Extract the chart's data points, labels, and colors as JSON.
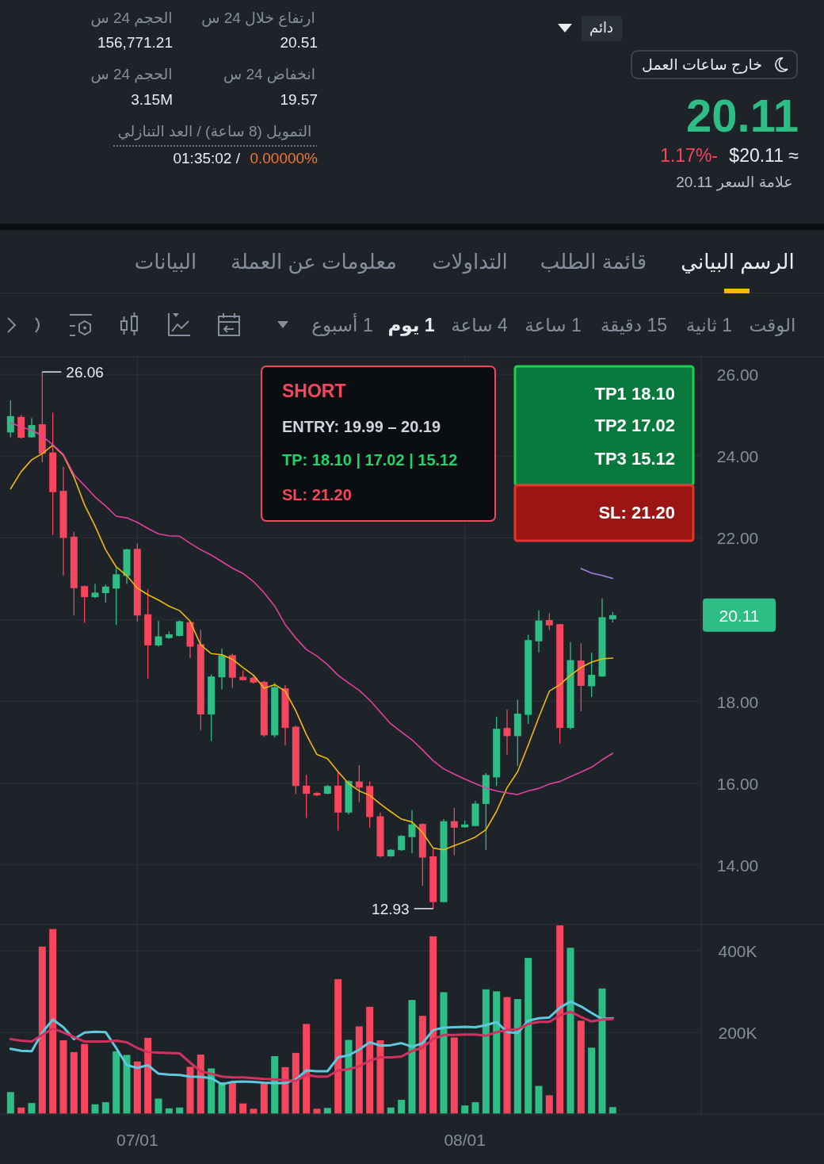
{
  "chart_data": [
    {
      "type": "other",
      "annotations": [
        "دائم",
        "خارج ساعات العمل",
        "20.11",
        "$20.11 ≈",
        "1.17%-",
        "علامة السعر 20.11",
        "ارتفاع خلال 24 س",
        "20.51",
        "انخفاض 24 س",
        "19.57",
        "الحجم 24 س",
        "156,771.21",
        "الحجم 24 س",
        "3.15M",
        "التمويل (8 ساعة) / العد التنازلي",
        "01:35:02 /",
        "0.00000%",
        "الرسم البياني",
        "قائمة الطلب",
        "التداولات",
        "معلومات عن العملة",
        "البيانات",
        "الوقت",
        "1 ثانية",
        "15 دقيقة",
        "1 ساعة",
        "4 ساعة",
        "1 يوم",
        "1 أسبوع"
      ]
    },
    {
      "type": "candlestick",
      "x": [
        "--06-19",
        "--06-20",
        "--06-21",
        "--06-22",
        "--06-23",
        "--06-24",
        "--06-25",
        "--06-26",
        "--06-27",
        "--06-28",
        "--06-29",
        "--06-30",
        "--07-01",
        "--07-02",
        "--07-03",
        "--07-04",
        "--07-05",
        "--07-06",
        "--07-07",
        "--07-08",
        "--07-09",
        "--07-10",
        "--07-11",
        "--07-12",
        "--07-13",
        "--07-14",
        "--07-15",
        "--07-16",
        "--07-17",
        "--07-18",
        "--07-19",
        "--07-20",
        "--07-21",
        "--07-22",
        "--07-23",
        "--07-24",
        "--07-25",
        "--07-26",
        "--07-27",
        "--07-28",
        "--07-29",
        "--07-30",
        "--07-31",
        "--08-01",
        "--08-02",
        "--08-03",
        "--08-04",
        "--08-05",
        "--08-06",
        "--08-07",
        "--08-08",
        "--08-09",
        "--08-10",
        "--08-11",
        "--08-12",
        "--08-13",
        "--08-14",
        "--08-15"
      ],
      "ohlc": [
        [
          24.58,
          25.37,
          24.46,
          24.98
        ],
        [
          24.96,
          25.01,
          24.43,
          24.45
        ],
        [
          24.46,
          24.93,
          24.45,
          24.76
        ],
        [
          24.78,
          26.06,
          23.85,
          24.06
        ],
        [
          24.09,
          25.06,
          22.07,
          23.12
        ],
        [
          23.15,
          23.74,
          21.08,
          22.0
        ],
        [
          22.03,
          22.15,
          20.1,
          20.77
        ],
        [
          20.82,
          20.84,
          19.92,
          20.55
        ],
        [
          20.55,
          20.87,
          20.53,
          20.66
        ],
        [
          20.65,
          20.86,
          20.42,
          20.81
        ],
        [
          20.76,
          21.29,
          19.87,
          21.11
        ],
        [
          21.07,
          21.73,
          20.87,
          21.72
        ],
        [
          21.73,
          21.86,
          19.95,
          20.1
        ],
        [
          20.13,
          20.74,
          18.56,
          19.37
        ],
        [
          19.37,
          19.97,
          19.34,
          19.59
        ],
        [
          19.55,
          19.71,
          19.53,
          19.64
        ],
        [
          19.6,
          19.98,
          19.59,
          19.96
        ],
        [
          19.94,
          19.97,
          19.06,
          19.34
        ],
        [
          19.4,
          19.75,
          17.3,
          17.68
        ],
        [
          17.68,
          18.66,
          17.03,
          18.61
        ],
        [
          18.59,
          19.29,
          18.29,
          19.13
        ],
        [
          19.13,
          19.17,
          18.33,
          18.58
        ],
        [
          18.6,
          18.76,
          18.51,
          18.52
        ],
        [
          18.58,
          18.64,
          18.43,
          18.46
        ],
        [
          18.48,
          18.5,
          17.13,
          17.17
        ],
        [
          17.17,
          18.45,
          17.12,
          18.35
        ],
        [
          18.32,
          18.41,
          16.93,
          17.35
        ],
        [
          17.38,
          17.41,
          15.73,
          15.93
        ],
        [
          15.94,
          16.2,
          15.15,
          15.74
        ],
        [
          15.76,
          15.78,
          15.68,
          15.7
        ],
        [
          15.74,
          15.96,
          15.73,
          15.93
        ],
        [
          15.94,
          16.27,
          14.84,
          15.28
        ],
        [
          15.28,
          16.07,
          15.23,
          16.05
        ],
        [
          16.04,
          16.44,
          15.54,
          15.89
        ],
        [
          15.93,
          16.04,
          14.91,
          15.17
        ],
        [
          15.19,
          15.28,
          14.18,
          14.21
        ],
        [
          14.21,
          14.39,
          14.2,
          14.37
        ],
        [
          14.36,
          14.73,
          14.34,
          14.71
        ],
        [
          14.68,
          15.34,
          14.28,
          14.99
        ],
        [
          15.0,
          15.02,
          13.49,
          14.18
        ],
        [
          14.21,
          14.39,
          12.93,
          13.09
        ],
        [
          13.09,
          15.12,
          13.08,
          15.07
        ],
        [
          15.07,
          15.39,
          14.24,
          14.91
        ],
        [
          14.92,
          15.08,
          14.91,
          14.99
        ],
        [
          14.95,
          15.56,
          14.94,
          15.5
        ],
        [
          15.49,
          16.25,
          14.37,
          16.2
        ],
        [
          16.14,
          17.63,
          15.93,
          17.33
        ],
        [
          17.35,
          17.8,
          16.7,
          17.15
        ],
        [
          17.15,
          18.04,
          16.42,
          17.7
        ],
        [
          17.67,
          19.63,
          17.45,
          19.5
        ],
        [
          19.47,
          20.23,
          19.2,
          19.98
        ],
        [
          19.99,
          20.16,
          19.74,
          19.86
        ],
        [
          19.89,
          19.89,
          16.97,
          17.35
        ],
        [
          17.35,
          19.45,
          17.31,
          19.01
        ],
        [
          19.0,
          19.42,
          17.76,
          18.38
        ],
        [
          18.37,
          19.19,
          18.11,
          18.65
        ],
        [
          18.61,
          20.52,
          18.6,
          20.06
        ],
        [
          20.01,
          20.19,
          19.93,
          20.11
        ]
      ],
      "colors": [
        "#2ebd85",
        "#f6465d",
        "#2ebd85",
        "#f6465d",
        "#f6465d",
        "#f6465d",
        "#f6465d",
        "#f6465d",
        "#2ebd85",
        "#2ebd85",
        "#2ebd85",
        "#2ebd85",
        "#f6465d",
        "#f6465d",
        "#2ebd85",
        "#2ebd85",
        "#2ebd85",
        "#f6465d",
        "#f6465d",
        "#2ebd85",
        "#2ebd85",
        "#f6465d",
        "#f6465d",
        "#f6465d",
        "#f6465d",
        "#2ebd85",
        "#f6465d",
        "#f6465d",
        "#f6465d",
        "#f6465d",
        "#2ebd85",
        "#f6465d",
        "#2ebd85",
        "#f6465d",
        "#f6465d",
        "#f6465d",
        "#2ebd85",
        "#2ebd85",
        "#2ebd85",
        "#f6465d",
        "#f6465d",
        "#2ebd85",
        "#f6465d",
        "#2ebd85",
        "#2ebd85",
        "#2ebd85",
        "#2ebd85",
        "#f6465d",
        "#2ebd85",
        "#2ebd85",
        "#2ebd85",
        "#f6465d",
        "#f6465d",
        "#2ebd85",
        "#f6465d",
        "#2ebd85",
        "#2ebd85",
        "#2ebd85"
      ],
      "series": [
        {
          "type": "line",
          "color": "#f0b90b",
          "values": [
            23.2,
            23.62,
            23.91,
            24.06,
            24.27,
            24.02,
            23.49,
            22.81,
            22.29,
            21.71,
            21.29,
            21.08,
            20.77,
            20.61,
            20.48,
            20.33,
            20.22,
            19.96,
            19.38,
            19.17,
            19.14,
            19.03,
            18.83,
            18.64,
            18.32,
            18.41,
            18.25,
            17.77,
            17.19,
            16.7,
            16.6,
            16.28,
            15.99,
            15.81,
            15.7,
            15.49,
            15.3,
            15.12,
            15.05,
            14.79,
            14.41,
            14.37,
            14.47,
            14.57,
            14.68,
            14.86,
            15.31,
            15.89,
            16.28,
            16.93,
            17.61,
            18.25,
            18.41,
            18.64,
            18.83,
            18.96,
            19.04,
            19.06
          ]
        },
        {
          "type": "line",
          "color": "#e0409f",
          "values": [
            24.82,
            24.71,
            24.64,
            24.49,
            24.28,
            24.04,
            23.55,
            23.28,
            23.0,
            22.78,
            22.53,
            22.49,
            22.38,
            22.23,
            22.1,
            22.05,
            22.04,
            21.87,
            21.71,
            21.58,
            21.42,
            21.26,
            21.13,
            20.93,
            20.66,
            20.33,
            19.88,
            19.55,
            19.27,
            19.11,
            18.9,
            18.64,
            18.45,
            18.27,
            18.03,
            17.74,
            17.45,
            17.25,
            17.06,
            16.81,
            16.55,
            16.35,
            16.22,
            16.1,
            15.99,
            15.88,
            15.81,
            15.76,
            15.72,
            15.81,
            15.87,
            15.98,
            16.04,
            16.16,
            16.27,
            16.39,
            16.57,
            16.73
          ]
        },
        {
          "type": "line",
          "color": "#a57ee8",
          "values": [
            null,
            null,
            null,
            null,
            null,
            null,
            null,
            null,
            null,
            null,
            null,
            null,
            null,
            null,
            null,
            null,
            null,
            null,
            null,
            null,
            null,
            null,
            null,
            null,
            null,
            null,
            null,
            null,
            null,
            null,
            null,
            null,
            null,
            null,
            null,
            null,
            null,
            null,
            null,
            null,
            null,
            null,
            null,
            null,
            null,
            null,
            null,
            null,
            null,
            null,
            null,
            null,
            null,
            null,
            21.25,
            21.14,
            21.08,
            21.01
          ]
        }
      ],
      "xlim": [
        "--06-18",
        "--09-04"
      ],
      "xticks": [
        {
          "value": "--07-01",
          "label": null
        },
        {
          "value": "--08-01",
          "label": null
        }
      ],
      "ylim": [
        12.56,
        26.43
      ],
      "yticks": [
        {
          "value": 26,
          "label": "26.00"
        },
        {
          "value": 24,
          "label": "24.00"
        },
        {
          "value": 22,
          "label": "22.00"
        },
        {
          "value": 20,
          "label": null
        },
        {
          "value": 18,
          "label": "18.00"
        },
        {
          "value": 16,
          "label": "16.00"
        },
        {
          "value": 14,
          "label": "14.00"
        }
      ],
      "grid": true,
      "tick_labels": "y",
      "annotations": [
        {
          "text": "26.06",
          "x": "--06-22",
          "y": 26.06
        },
        {
          "text": "12.93",
          "x": "--07-29",
          "y": 12.93
        },
        "20.11",
        "TP1 18.10",
        "TP2 17.02",
        "TP3 15.12",
        "SL: 21.20",
        "SHORT",
        "ENTRY: 19.99 – 20.19",
        "TP: 18.10 | 17.02 | 15.12",
        "SL: 21.20"
      ]
    },
    {
      "type": "bar",
      "x": [
        "--06-19",
        "--06-20",
        "--06-21",
        "--06-22",
        "--06-23",
        "--06-24",
        "--06-25",
        "--06-26",
        "--06-27",
        "--06-28",
        "--06-29",
        "--06-30",
        "--07-01",
        "--07-02",
        "--07-03",
        "--07-04",
        "--07-05",
        "--07-06",
        "--07-07",
        "--07-08",
        "--07-09",
        "--07-10",
        "--07-11",
        "--07-12",
        "--07-13",
        "--07-14",
        "--07-15",
        "--07-16",
        "--07-17",
        "--07-18",
        "--07-19",
        "--07-20",
        "--07-21",
        "--07-22",
        "--07-23",
        "--07-24",
        "--07-25",
        "--07-26",
        "--07-27",
        "--07-28",
        "--07-29",
        "--07-30",
        "--07-31",
        "--08-01",
        "--08-02",
        "--08-03",
        "--08-04",
        "--08-05",
        "--08-06",
        "--08-07",
        "--08-08",
        "--08-09",
        "--08-10",
        "--08-11",
        "--08-12",
        "--08-13",
        "--08-14",
        "--08-15"
      ],
      "series": [
        {
          "colors": [
            "#2ebd85",
            "#f6465d",
            "#2ebd85",
            "#f6465d",
            "#f6465d",
            "#f6465d",
            "#f6465d",
            "#f6465d",
            "#2ebd85",
            "#2ebd85",
            "#2ebd85",
            "#2ebd85",
            "#f6465d",
            "#f6465d",
            "#2ebd85",
            "#2ebd85",
            "#2ebd85",
            "#f6465d",
            "#f6465d",
            "#2ebd85",
            "#2ebd85",
            "#f6465d",
            "#f6465d",
            "#f6465d",
            "#f6465d",
            "#2ebd85",
            "#f6465d",
            "#f6465d",
            "#f6465d",
            "#f6465d",
            "#2ebd85",
            "#f6465d",
            "#2ebd85",
            "#f6465d",
            "#f6465d",
            "#f6465d",
            "#2ebd85",
            "#2ebd85",
            "#2ebd85",
            "#f6465d",
            "#f6465d",
            "#2ebd85",
            "#f6465d",
            "#2ebd85",
            "#2ebd85",
            "#2ebd85",
            "#2ebd85",
            "#f6465d",
            "#2ebd85",
            "#2ebd85",
            "#2ebd85",
            "#f6465d",
            "#f6465d",
            "#2ebd85",
            "#f6465d",
            "#2ebd85",
            "#2ebd85",
            "#2ebd85"
          ],
          "values": [
            54000,
            16000,
            27000,
            411000,
            454000,
            181000,
            152000,
            172000,
            24000,
            29000,
            154000,
            145000,
            129000,
            187000,
            38000,
            14000,
            16000,
            116000,
            146000,
            112000,
            78000,
            78000,
            26000,
            13000,
            75000,
            142000,
            115000,
            150000,
            221000,
            13000,
            15000,
            331000,
            182000,
            215000,
            263000,
            181000,
            16000,
            35000,
            280000,
            241000,
            436000,
            299000,
            188000,
            21000,
            29000,
            306000,
            301000,
            287000,
            282000,
            383000,
            69000,
            46000,
            463000,
            408000,
            229000,
            163000,
            308000,
            17000
          ]
        },
        {
          "type": "line",
          "color": "#5ec8df",
          "values": [
            160000,
            155000,
            154000,
            200000,
            232000,
            213000,
            184000,
            200000,
            202000,
            201000,
            162000,
            120000,
            113000,
            120000,
            99000,
            97000,
            96000,
            92000,
            91000,
            88000,
            73000,
            79000,
            80000,
            79000,
            77000,
            76000,
            76000,
            85000,
            107000,
            105000,
            105000,
            139000,
            144000,
            158000,
            176000,
            168000,
            169000,
            174000,
            165000,
            174000,
            206000,
            212000,
            213000,
            214000,
            213000,
            218000,
            226000,
            201000,
            199000,
            229000,
            235000,
            237000,
            261000,
            276000,
            264000,
            248000,
            233000,
            235000
          ]
        },
        {
          "type": "line",
          "color": "#d2315f",
          "values": [
            184000,
            180000,
            178000,
            194000,
            210000,
            200000,
            189000,
            178000,
            178000,
            178000,
            180000,
            176000,
            162000,
            152000,
            151000,
            150000,
            149000,
            126000,
            105000,
            99000,
            92000,
            90000,
            90000,
            88000,
            86000,
            85000,
            83000,
            81000,
            96000,
            92000,
            92000,
            107000,
            110000,
            117000,
            131000,
            139000,
            139000,
            141000,
            155000,
            163000,
            184000,
            194000,
            194000,
            195000,
            195000,
            192000,
            201000,
            206000,
            208000,
            221000,
            226000,
            226000,
            242000,
            251000,
            238000,
            227000,
            232000,
            233000
          ]
        }
      ],
      "xlim": [
        "--06-18",
        "--09-04"
      ],
      "xticks": [
        {
          "value": "--07-01",
          "label": "07/01"
        },
        {
          "value": "--08-01",
          "label": "08/01"
        }
      ],
      "ylim": [
        0,
        465000
      ],
      "yticks": [
        {
          "value": 200000,
          "label": "200K"
        },
        {
          "value": 400000,
          "label": "400K"
        }
      ],
      "grid": true
    }
  ]
}
